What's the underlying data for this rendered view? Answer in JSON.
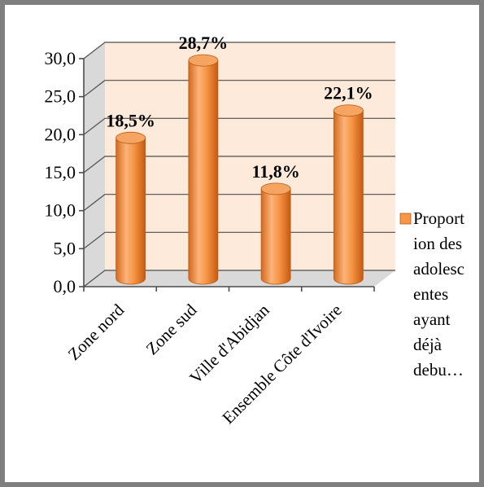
{
  "chart_data": {
    "type": "bar",
    "style": "3d-cylinder",
    "categories": [
      "Zone nord",
      "Zone sud",
      "Ville d'Abidjan",
      "Ensemble Côte d'Ivoire"
    ],
    "series": [
      {
        "name": "Proportion des adolescentes ayant déjà debu…",
        "values": [
          18.5,
          28.7,
          11.8,
          22.1
        ],
        "data_labels": [
          "18,5%",
          "28,7%",
          "11,8%",
          "22,1%"
        ],
        "color": "#f79646"
      }
    ],
    "y_ticks": [
      "0,0",
      "5,0",
      "10,0",
      "15,0",
      "20,0",
      "25,0",
      "30,0"
    ],
    "ylim": [
      0,
      30
    ],
    "grid": true,
    "legend": {
      "position": "right",
      "lines": [
        "Proport",
        "ion des",
        "adolesc",
        "entes",
        "ayant",
        "déjà",
        "debu…"
      ]
    },
    "colors": {
      "wall": "#fdeada",
      "floor": "#d9d9d9",
      "bar": "#f79646",
      "frame": "#7f7f7f"
    }
  }
}
